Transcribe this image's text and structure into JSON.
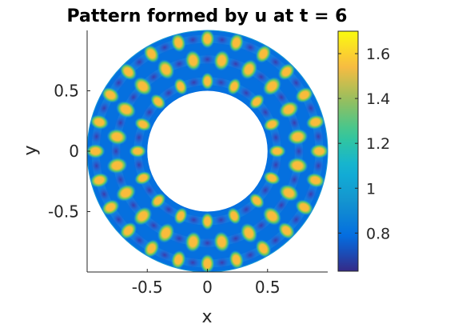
{
  "chart_data": {
    "type": "heatmap",
    "title": "Pattern formed by u at t = 6",
    "xlabel": "x",
    "ylabel": "y",
    "xlim": [
      -1,
      1
    ],
    "ylim": [
      -1,
      1
    ],
    "x_ticks": [
      {
        "value": -0.5,
        "label": "-0.5"
      },
      {
        "value": 0,
        "label": "0"
      },
      {
        "value": 0.5,
        "label": "0.5"
      }
    ],
    "y_ticks": [
      {
        "value": 0.5,
        "label": "0.5"
      },
      {
        "value": 0,
        "label": "0"
      },
      {
        "value": -0.5,
        "label": "-0.5"
      }
    ],
    "domain": {
      "shape": "annulus",
      "inner_radius": 0.5,
      "outer_radius": 1.0
    },
    "field": {
      "base_value": 0.8,
      "spot_value": 1.45,
      "rings": [
        {
          "radius": 0.58,
          "count": 16,
          "phase_deg": 0
        },
        {
          "radius": 0.76,
          "count": 20,
          "phase_deg": 9
        },
        {
          "radius": 0.93,
          "count": 24,
          "phase_deg": 0
        }
      ]
    },
    "colorbar": {
      "min": 0.63,
      "max": 1.7,
      "colormap": "parula",
      "ticks": [
        {
          "value": 1.6,
          "label": "1.6"
        },
        {
          "value": 1.4,
          "label": "1.4"
        },
        {
          "value": 1.2,
          "label": "1.2"
        },
        {
          "value": 1.0,
          "label": "1"
        },
        {
          "value": 0.8,
          "label": "0.8"
        }
      ]
    }
  }
}
